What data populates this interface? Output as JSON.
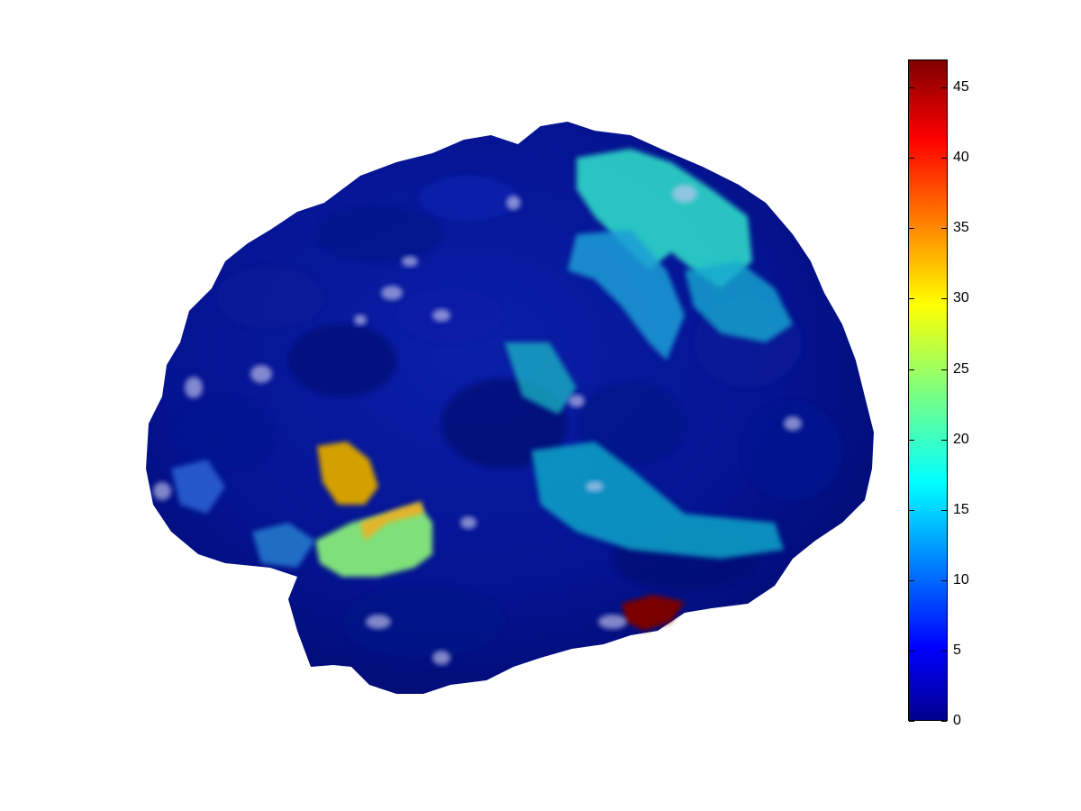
{
  "figure": {
    "background": "#ffffff",
    "subject": "brain-surface-render"
  },
  "colormap": {
    "name": "jet",
    "stops": [
      "#00008f",
      "#0000ff",
      "#00ffff",
      "#7fff7f",
      "#ffff00",
      "#ff0000",
      "#800000"
    ]
  },
  "colorbar": {
    "min": 0,
    "max": 47,
    "ticks": [
      "0",
      "5",
      "10",
      "15",
      "20",
      "25",
      "30",
      "35",
      "40",
      "45"
    ],
    "tick_values": [
      0,
      5,
      10,
      15,
      20,
      25,
      30,
      35,
      40,
      45
    ]
  }
}
